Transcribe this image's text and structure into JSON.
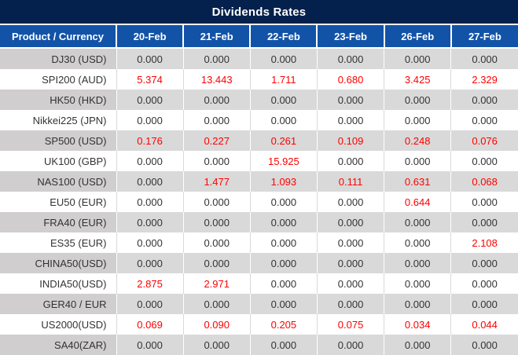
{
  "chart_data": {
    "type": "table",
    "title": "Dividends Rates",
    "product_header": "Product / Currency",
    "columns": [
      "20-Feb",
      "21-Feb",
      "22-Feb",
      "23-Feb",
      "26-Feb",
      "27-Feb"
    ],
    "rows": [
      {
        "product": "DJ30 (USD)",
        "values": [
          "0.000",
          "0.000",
          "0.000",
          "0.000",
          "0.000",
          "0.000"
        ],
        "red": [
          false,
          false,
          false,
          false,
          false,
          false
        ]
      },
      {
        "product": "SPI200 (AUD)",
        "values": [
          "5.374",
          "13.443",
          "1.711",
          "0.680",
          "3.425",
          "2.329"
        ],
        "red": [
          true,
          true,
          true,
          true,
          true,
          true
        ]
      },
      {
        "product": "HK50 (HKD)",
        "values": [
          "0.000",
          "0.000",
          "0.000",
          "0.000",
          "0.000",
          "0.000"
        ],
        "red": [
          false,
          false,
          false,
          false,
          false,
          false
        ]
      },
      {
        "product": "Nikkei225 (JPN)",
        "values": [
          "0.000",
          "0.000",
          "0.000",
          "0.000",
          "0.000",
          "0.000"
        ],
        "red": [
          false,
          false,
          false,
          false,
          false,
          false
        ]
      },
      {
        "product": "SP500 (USD)",
        "values": [
          "0.176",
          "0.227",
          "0.261",
          "0.109",
          "0.248",
          "0.076"
        ],
        "red": [
          true,
          true,
          true,
          true,
          true,
          true
        ]
      },
      {
        "product": "UK100 (GBP)",
        "values": [
          "0.000",
          "0.000",
          "15.925",
          "0.000",
          "0.000",
          "0.000"
        ],
        "red": [
          false,
          false,
          true,
          false,
          false,
          false
        ]
      },
      {
        "product": "NAS100 (USD)",
        "values": [
          "0.000",
          "1.477",
          "1.093",
          "0.111",
          "0.631",
          "0.068"
        ],
        "red": [
          false,
          true,
          true,
          true,
          true,
          true
        ]
      },
      {
        "product": "EU50 (EUR)",
        "values": [
          "0.000",
          "0.000",
          "0.000",
          "0.000",
          "0.644",
          "0.000"
        ],
        "red": [
          false,
          false,
          false,
          false,
          true,
          false
        ]
      },
      {
        "product": "FRA40 (EUR)",
        "values": [
          "0.000",
          "0.000",
          "0.000",
          "0.000",
          "0.000",
          "0.000"
        ],
        "red": [
          false,
          false,
          false,
          false,
          false,
          false
        ]
      },
      {
        "product": "ES35 (EUR)",
        "values": [
          "0.000",
          "0.000",
          "0.000",
          "0.000",
          "0.000",
          "2.108"
        ],
        "red": [
          false,
          false,
          false,
          false,
          false,
          true
        ]
      },
      {
        "product": "CHINA50(USD)",
        "values": [
          "0.000",
          "0.000",
          "0.000",
          "0.000",
          "0.000",
          "0.000"
        ],
        "red": [
          false,
          false,
          false,
          false,
          false,
          false
        ]
      },
      {
        "product": "INDIA50(USD)",
        "values": [
          "2.875",
          "2.971",
          "0.000",
          "0.000",
          "0.000",
          "0.000"
        ],
        "red": [
          true,
          true,
          false,
          false,
          false,
          false
        ]
      },
      {
        "product": "GER40 / EUR",
        "values": [
          "0.000",
          "0.000",
          "0.000",
          "0.000",
          "0.000",
          "0.000"
        ],
        "red": [
          false,
          false,
          false,
          false,
          false,
          false
        ]
      },
      {
        "product": "US2000(USD)",
        "values": [
          "0.069",
          "0.090",
          "0.205",
          "0.075",
          "0.034",
          "0.044"
        ],
        "red": [
          true,
          true,
          true,
          true,
          true,
          true
        ]
      },
      {
        "product": "SA40(ZAR)",
        "values": [
          "0.000",
          "0.000",
          "0.000",
          "0.000",
          "0.000",
          "0.000"
        ],
        "red": [
          false,
          false,
          false,
          false,
          false,
          false
        ]
      }
    ],
    "colors": {
      "title_bar_bg": "#04204c",
      "header_bg": "#1253a8",
      "header_text": "#ffffff",
      "stripe_product_bg": "#d0cece",
      "stripe_value_bg": "#d9d9d9",
      "white_row_bg": "#ffffff",
      "value_text": "#333333",
      "highlight_text": "#ff0000"
    },
    "layout": {
      "legend": "none",
      "grid": "striped-rows",
      "value_alignment": "center",
      "product_alignment": "right"
    }
  }
}
